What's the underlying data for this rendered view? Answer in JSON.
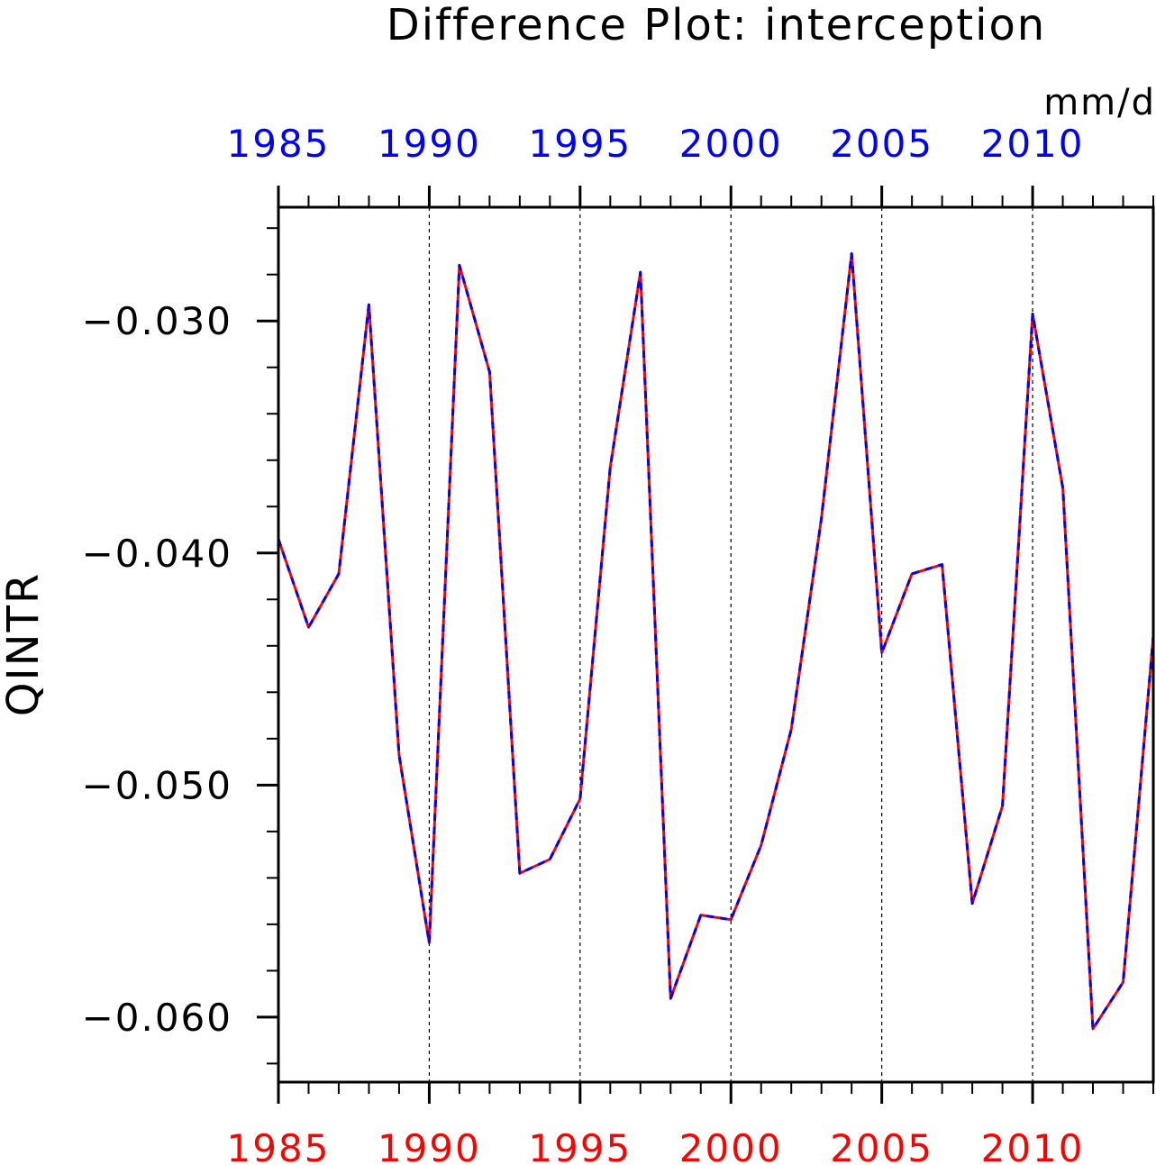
{
  "chart_data": {
    "type": "line",
    "title": "Difference Plot: interception",
    "ylabel": "QINTR",
    "units": "mm/d",
    "xlim": [
      1985,
      2014
    ],
    "ylim": [
      -0.0628,
      -0.0251
    ],
    "x_ticks": [
      1985,
      1990,
      1995,
      2000,
      2005,
      2010
    ],
    "y_ticks": [
      -0.03,
      -0.04,
      -0.05,
      -0.06
    ],
    "y_tick_labels": [
      "−0.030",
      "−0.040",
      "−0.050",
      "−0.060"
    ],
    "top_axis_color": "#0000ff",
    "bottom_axis_color": "#ff0000",
    "vertical_gridlines": [
      1990,
      1995,
      2000,
      2005,
      2010
    ],
    "grid": "dashed vertical",
    "legend": "none",
    "series": [
      {
        "color": "#ff0000",
        "style": "solid",
        "x": [
          1985,
          1986,
          1987,
          1988,
          1989,
          1990,
          1991,
          1992,
          1993,
          1994,
          1995,
          1996,
          1997,
          1998,
          1999,
          2000,
          2001,
          2002,
          2003,
          2004,
          2005,
          2006,
          2007,
          2008,
          2009,
          2010,
          2011,
          2012,
          2013,
          2014
        ],
        "values": [
          -0.0394,
          -0.0432,
          -0.0409,
          -0.0293,
          -0.0487,
          -0.0568,
          -0.0276,
          -0.0322,
          -0.0538,
          -0.0532,
          -0.0506,
          -0.0363,
          -0.0279,
          -0.0592,
          -0.0556,
          -0.0558,
          -0.0526,
          -0.0476,
          -0.0385,
          -0.0271,
          -0.0443,
          -0.0409,
          -0.0405,
          -0.0551,
          -0.0509,
          -0.0297,
          -0.0372,
          -0.0605,
          -0.0585,
          -0.0436
        ]
      },
      {
        "color": "#0000ff",
        "style": "dashed",
        "x": [
          1985,
          1986,
          1987,
          1988,
          1989,
          1990,
          1991,
          1992,
          1993,
          1994,
          1995,
          1996,
          1997,
          1998,
          1999,
          2000,
          2001,
          2002,
          2003,
          2004,
          2005,
          2006,
          2007,
          2008,
          2009,
          2010,
          2011,
          2012,
          2013,
          2014
        ],
        "values": [
          -0.0394,
          -0.0432,
          -0.0409,
          -0.0293,
          -0.0487,
          -0.0568,
          -0.0276,
          -0.0322,
          -0.0538,
          -0.0532,
          -0.0506,
          -0.0363,
          -0.0279,
          -0.0592,
          -0.0556,
          -0.0558,
          -0.0526,
          -0.0476,
          -0.0385,
          -0.0271,
          -0.0443,
          -0.0409,
          -0.0405,
          -0.0551,
          -0.0509,
          -0.0297,
          -0.0372,
          -0.0605,
          -0.0585,
          -0.0436
        ]
      }
    ]
  }
}
